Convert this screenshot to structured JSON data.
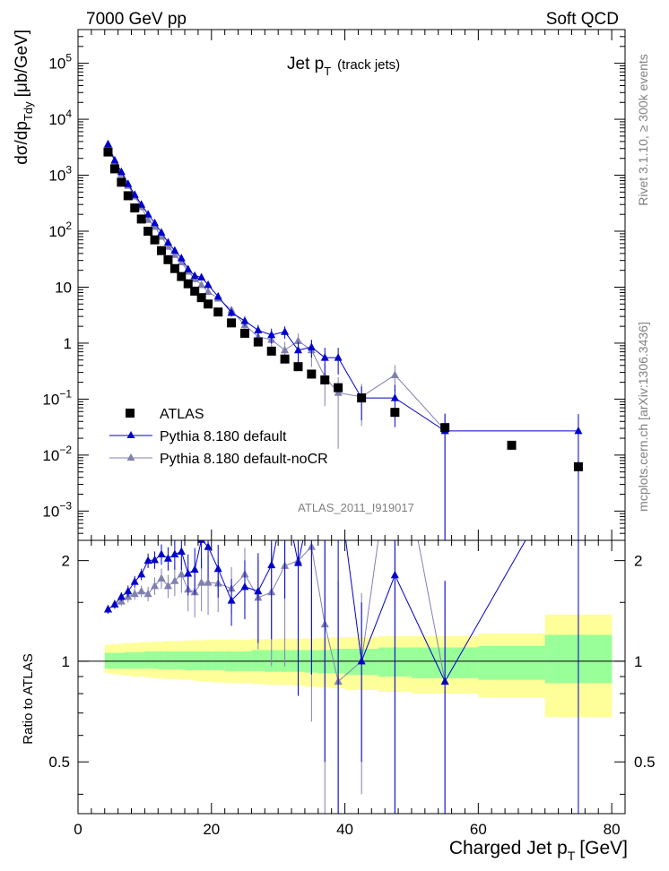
{
  "header": {
    "left": "7000 GeV pp",
    "right": "Soft QCD"
  },
  "side": {
    "rivet": "Rivet 3.1.10, ≥ 300k events",
    "mcplots": "mcplots.cern.ch [arXiv:1306.3436]"
  },
  "colors": {
    "atlas": "#000000",
    "default": "#0000cc",
    "noCR": "#8080b0",
    "band_inner": "#99ff99",
    "band_outer": "#ffff99"
  },
  "chart_data": {
    "type": "scatter",
    "title": "Jet p_T (track jets)",
    "title_main": "Jet p",
    "title_sub": "T",
    "title_extra": "(track jets)",
    "watermark": "ATLAS_2011_I919017",
    "xlabel": "Charged Jet p_T [GeV]",
    "xlabel_main": "Charged Jet p",
    "xlabel_sub": "T",
    "xlabel_unit": "[GeV]",
    "ylabel": "dσ/dp_Tdy [μb/GeV]",
    "ylabel_main": "dσ/dp",
    "ylabel_sub": "Tdy",
    "ylabel_unit": "[μb/GeV]",
    "ratio_ylabel": "Ratio to ATLAS",
    "xlim": [
      0,
      82
    ],
    "ylim": [
      0.0003,
      400000
    ],
    "ratio_ylim": [
      0.35,
      2.3
    ],
    "xscale": "linear",
    "yscale": "log",
    "x_ticks": [
      "0",
      "20",
      "40",
      "60",
      "80"
    ],
    "y_ticks": [
      {
        "v": 100000,
        "b": "10",
        "e": "5"
      },
      {
        "v": 10000,
        "b": "10",
        "e": "4"
      },
      {
        "v": 1000,
        "b": "10",
        "e": "3"
      },
      {
        "v": 100,
        "b": "10",
        "e": "2"
      },
      {
        "v": 10,
        "b": "10",
        "e": ""
      },
      {
        "v": 1,
        "b": "1",
        "e": ""
      },
      {
        "v": 0.1,
        "b": "10",
        "e": "−1"
      },
      {
        "v": 0.01,
        "b": "10",
        "e": "−2"
      },
      {
        "v": 0.001,
        "b": "10",
        "e": "−3"
      }
    ],
    "ratio_ticks": [
      {
        "v": 2,
        "label": "2"
      },
      {
        "v": 1,
        "label": "1"
      },
      {
        "v": 0.5,
        "label": "0.5"
      }
    ],
    "legend": {
      "position": "bottom-left",
      "entries": [
        "ATLAS",
        "Pythia 8.180 default",
        "Pythia 8.180 default-noCR"
      ]
    },
    "series": [
      {
        "name": "ATLAS",
        "x": [
          4.5,
          5.5,
          6.5,
          7.5,
          8.5,
          9.5,
          10.5,
          11.5,
          12.5,
          13.5,
          14.5,
          15.5,
          16.5,
          17.5,
          18.5,
          19.5,
          21,
          23,
          25,
          27,
          29,
          31,
          33,
          35,
          37,
          39,
          42.5,
          47.5,
          55,
          65,
          75
        ],
        "y": [
          2600,
          1300,
          750,
          430,
          260,
          165,
          100,
          70,
          45,
          31,
          21.5,
          15.5,
          11.5,
          8.5,
          6.5,
          5.0,
          3.6,
          2.3,
          1.5,
          1.05,
          0.72,
          0.52,
          0.38,
          0.28,
          0.22,
          0.16,
          0.105,
          0.058,
          0.031,
          0.015,
          0.0062
        ]
      },
      {
        "name": "Pythia 8.180 default",
        "x": [
          4.5,
          5.5,
          6.5,
          7.5,
          8.5,
          9.5,
          10.5,
          11.5,
          12.5,
          13.5,
          14.5,
          15.5,
          16.5,
          17.5,
          18.5,
          19.5,
          21,
          23,
          25,
          27,
          29,
          31,
          33,
          35,
          37,
          39,
          42.5,
          47.5,
          55,
          75
        ],
        "y": [
          3600,
          1850,
          1150,
          700,
          450,
          300,
          200,
          140,
          95,
          63,
          45,
          33,
          21,
          16,
          15,
          11,
          6.8,
          3.5,
          2.5,
          1.7,
          1.4,
          1.6,
          0.75,
          0.85,
          0.55,
          0.55,
          0.105,
          0.105,
          0.027,
          0.027
        ],
        "err": [
          0.03,
          0.03,
          0.03,
          0.03,
          0.03,
          0.03,
          0.04,
          0.04,
          0.05,
          0.06,
          0.07,
          0.08,
          0.1,
          0.12,
          0.12,
          0.13,
          0.13,
          0.15,
          0.2,
          0.25,
          0.3,
          0.25,
          0.4,
          0.35,
          0.5,
          0.5,
          0.6,
          0.7,
          1.0,
          1.0
        ],
        "ratio": [
          1.43,
          1.48,
          1.56,
          1.62,
          1.73,
          1.82,
          2.0,
          2.01,
          2.09,
          2.03,
          2.09,
          2.13,
          1.83,
          1.88,
          2.31,
          2.2,
          1.89,
          1.52,
          1.67,
          1.62,
          1.94,
          3.08,
          1.97,
          3.04,
          2.5,
          3.44,
          1.0,
          1.81,
          0.87,
          4.35
        ],
        "ratio_err": [
          0.03,
          0.03,
          0.03,
          0.04,
          0.04,
          0.04,
          0.05,
          0.06,
          0.07,
          0.08,
          0.1,
          0.12,
          0.14,
          0.16,
          0.18,
          0.2,
          0.18,
          0.16,
          0.2,
          0.3,
          0.4,
          0.5,
          0.6,
          0.7,
          0.8,
          1.0,
          0.5,
          1.3,
          1.0,
          1.5
        ]
      },
      {
        "name": "Pythia 8.180 default-noCR",
        "x": [
          4.5,
          5.5,
          6.5,
          7.5,
          8.5,
          9.5,
          10.5,
          11.5,
          12.5,
          13.5,
          14.5,
          15.5,
          16.5,
          17.5,
          18.5,
          19.5,
          21,
          23,
          25,
          27,
          29,
          31,
          33,
          35,
          37,
          39,
          42.5,
          47.5,
          55
        ],
        "y": [
          3300,
          1750,
          1050,
          650,
          420,
          270,
          160,
          120,
          80,
          53,
          38,
          28,
          19,
          14,
          11,
          8.3,
          6.3,
          3.9,
          2.1,
          1.3,
          1.15,
          0.75,
          1.1,
          0.75,
          0.25,
          0.13,
          0.11,
          0.27,
          0.028
        ],
        "err": [
          0.03,
          0.03,
          0.03,
          0.03,
          0.03,
          0.03,
          0.04,
          0.04,
          0.05,
          0.06,
          0.07,
          0.08,
          0.1,
          0.12,
          0.12,
          0.13,
          0.13,
          0.15,
          0.2,
          0.25,
          0.3,
          0.4,
          0.35,
          0.5,
          0.7,
          0.9,
          0.7,
          0.5,
          1.0
        ],
        "ratio": [
          1.43,
          1.48,
          1.51,
          1.56,
          1.59,
          1.62,
          1.59,
          1.68,
          1.77,
          1.68,
          1.74,
          1.82,
          1.64,
          1.61,
          1.72,
          1.72,
          1.71,
          1.65,
          1.82,
          1.55,
          1.61,
          1.93,
          2.0,
          2.2,
          1.29,
          0.87,
          1.0,
          5.3,
          0.87
        ],
        "ratio_err": [
          0.03,
          0.03,
          0.03,
          0.04,
          0.04,
          0.04,
          0.05,
          0.06,
          0.07,
          0.08,
          0.1,
          0.12,
          0.14,
          0.16,
          0.18,
          0.2,
          0.18,
          0.16,
          0.2,
          0.3,
          0.4,
          0.5,
          0.6,
          0.7,
          0.8,
          1.0,
          0.6,
          1.5,
          1.0
        ]
      }
    ],
    "ratio_band": {
      "x_edges": [
        4,
        5,
        6,
        7,
        8,
        9,
        10,
        11,
        12,
        13,
        14,
        15,
        16,
        17,
        18,
        19,
        20,
        22,
        24,
        26,
        28,
        30,
        32,
        34,
        36,
        38,
        40,
        45,
        50,
        60,
        70,
        80
      ],
      "inner_lo": [
        0.95,
        0.95,
        0.95,
        0.95,
        0.95,
        0.95,
        0.95,
        0.95,
        0.945,
        0.945,
        0.945,
        0.945,
        0.94,
        0.94,
        0.94,
        0.94,
        0.94,
        0.935,
        0.935,
        0.935,
        0.93,
        0.93,
        0.93,
        0.925,
        0.92,
        0.92,
        0.91,
        0.9,
        0.89,
        0.88,
        0.86
      ],
      "inner_hi": [
        1.06,
        1.06,
        1.06,
        1.065,
        1.065,
        1.065,
        1.07,
        1.07,
        1.07,
        1.07,
        1.07,
        1.07,
        1.07,
        1.07,
        1.07,
        1.07,
        1.07,
        1.07,
        1.07,
        1.08,
        1.08,
        1.08,
        1.08,
        1.08,
        1.08,
        1.09,
        1.09,
        1.1,
        1.1,
        1.11,
        1.2
      ],
      "outer_lo": [
        0.92,
        0.915,
        0.91,
        0.905,
        0.9,
        0.9,
        0.895,
        0.89,
        0.89,
        0.885,
        0.885,
        0.88,
        0.88,
        0.875,
        0.87,
        0.87,
        0.865,
        0.86,
        0.86,
        0.855,
        0.85,
        0.85,
        0.845,
        0.84,
        0.835,
        0.83,
        0.82,
        0.81,
        0.8,
        0.78,
        0.68
      ],
      "outer_hi": [
        1.12,
        1.125,
        1.13,
        1.135,
        1.135,
        1.14,
        1.14,
        1.145,
        1.145,
        1.15,
        1.15,
        1.15,
        1.155,
        1.155,
        1.155,
        1.16,
        1.16,
        1.16,
        1.16,
        1.165,
        1.165,
        1.17,
        1.17,
        1.17,
        1.175,
        1.18,
        1.18,
        1.19,
        1.19,
        1.21,
        1.38
      ]
    }
  }
}
